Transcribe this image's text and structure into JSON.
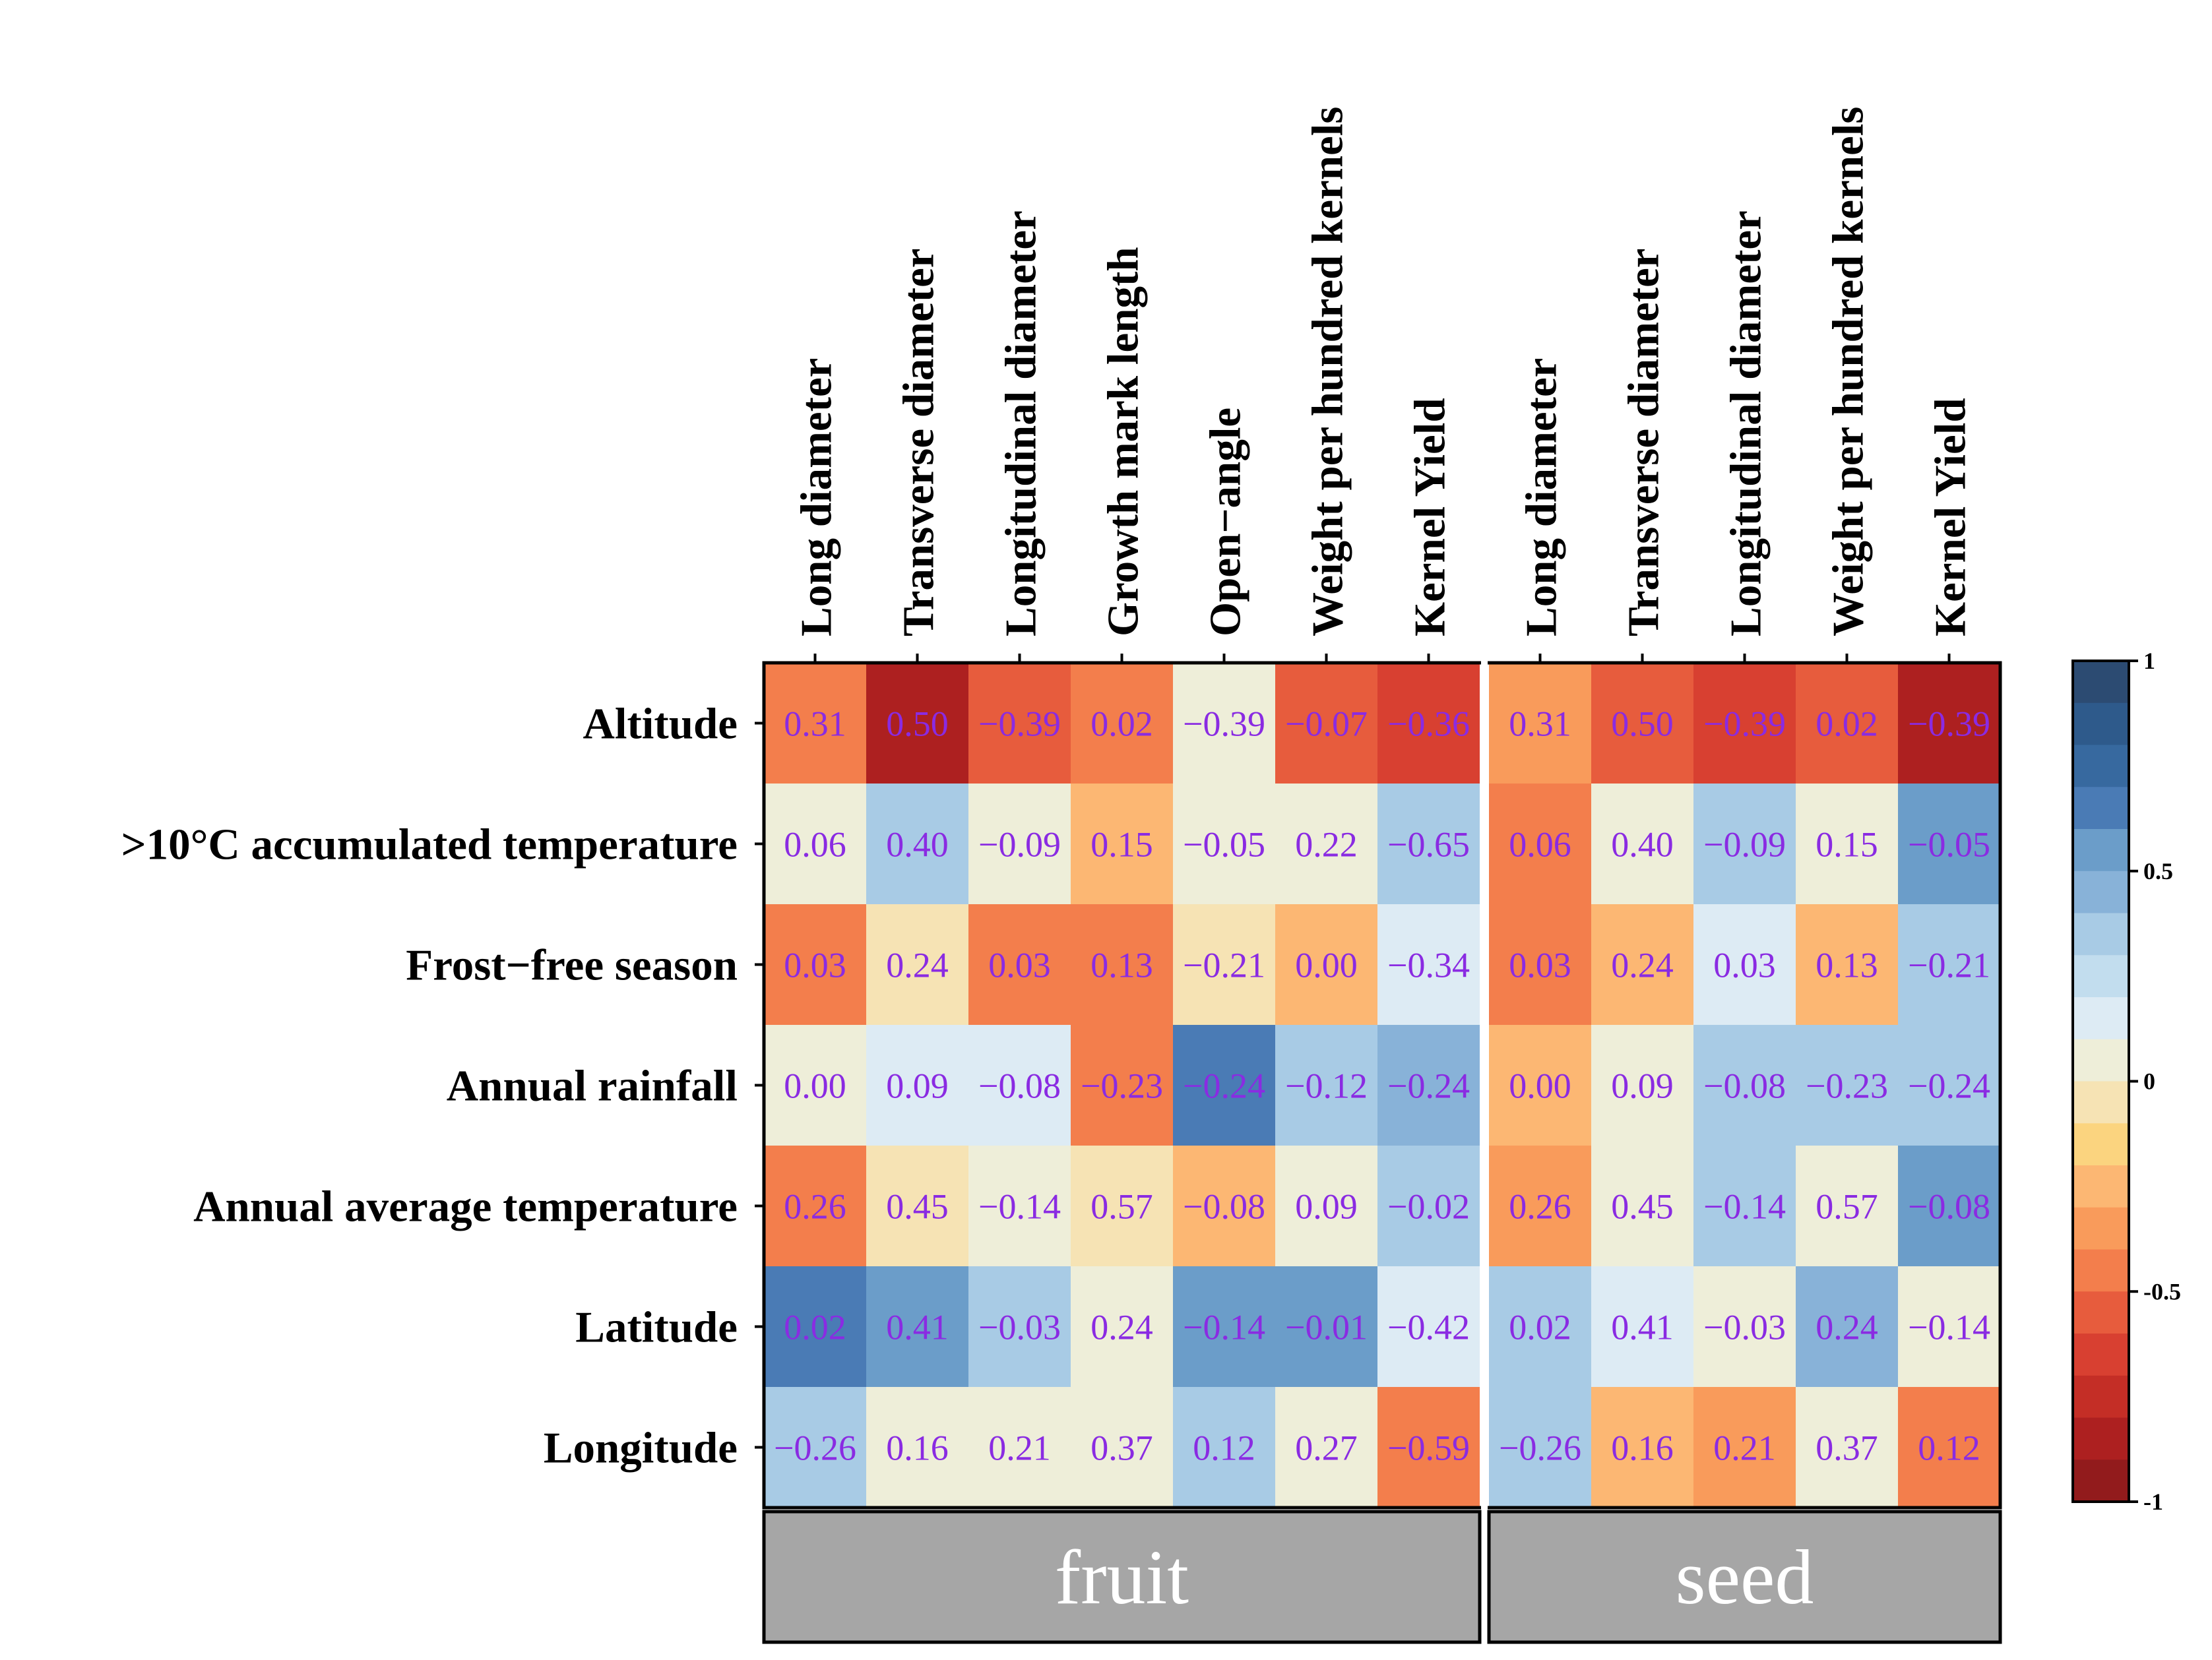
{
  "chart_data": {
    "type": "heatmap",
    "columns": [
      "Long diameter",
      "Transverse diameter",
      "Longitudinal diameter",
      "Growth mark length",
      "Open−angle",
      "Weight per hundred kernels",
      "Kernel Yield",
      "Long diameter",
      "Transverse diameter",
      "Longitudinal diameter",
      "Weight per hundred kernels",
      "Kernel Yield"
    ],
    "rows": [
      "Altitude",
      ">10°C accumulated temperature",
      "Frost−free season",
      "Annual rainfall",
      "Annual average temperature",
      "Latitude",
      "Longitude"
    ],
    "groups": [
      {
        "name": "fruit",
        "columns": 7
      },
      {
        "name": "seed",
        "columns": 5
      }
    ],
    "labels": [
      [
        "0.31",
        "0.50",
        "−0.39",
        "0.02",
        "−0.39",
        "−0.07",
        "−0.36",
        "0.31",
        "0.50",
        "−0.39",
        "0.02",
        "−0.39"
      ],
      [
        "0.06",
        "0.40",
        "−0.09",
        "0.15",
        "−0.05",
        "0.22",
        "−0.65",
        "0.06",
        "0.40",
        "−0.09",
        "0.15",
        "−0.05"
      ],
      [
        "0.03",
        "0.24",
        "0.03",
        "0.13",
        "−0.21",
        "0.00",
        "−0.34",
        "0.03",
        "0.24",
        "0.03",
        "0.13",
        "−0.21"
      ],
      [
        "0.00",
        "0.09",
        "−0.08",
        "−0.23",
        "−0.24",
        "−0.12",
        "−0.24",
        "0.00",
        "0.09",
        "−0.08",
        "−0.23",
        "−0.24"
      ],
      [
        "0.26",
        "0.45",
        "−0.14",
        "0.57",
        "−0.08",
        "0.09",
        "−0.02",
        "0.26",
        "0.45",
        "−0.14",
        "0.57",
        "−0.08"
      ],
      [
        "0.02",
        "0.41",
        "−0.03",
        "0.24",
        "−0.14",
        "−0.01",
        "−0.42",
        "0.02",
        "0.41",
        "−0.03",
        "0.24",
        "−0.14"
      ],
      [
        "−0.26",
        "0.16",
        "0.21",
        "0.37",
        "0.12",
        "0.27",
        "−0.59",
        "−0.26",
        "0.16",
        "0.21",
        "0.37",
        "0.12"
      ]
    ],
    "color_values": [
      [
        -0.45,
        -0.85,
        -0.5,
        -0.4,
        0.05,
        -0.55,
        -0.65,
        -0.35,
        -0.55,
        -0.65,
        -0.5,
        -0.85
      ],
      [
        0.05,
        0.35,
        0.08,
        -0.2,
        0.08,
        0.05,
        0.35,
        -0.4,
        0.05,
        0.35,
        0.08,
        0.6
      ],
      [
        -0.45,
        0.0,
        -0.4,
        -0.4,
        0.0,
        -0.2,
        0.2,
        -0.45,
        -0.2,
        0.2,
        -0.2,
        0.35
      ],
      [
        0.08,
        0.2,
        0.2,
        -0.4,
        0.65,
        0.35,
        0.45,
        -0.2,
        0.05,
        0.35,
        0.35,
        0.4
      ],
      [
        -0.45,
        0.0,
        0.08,
        0.0,
        -0.25,
        0.02,
        0.35,
        -0.35,
        0.08,
        0.35,
        0.08,
        0.55
      ],
      [
        0.65,
        0.6,
        0.35,
        0.08,
        0.55,
        0.6,
        0.2,
        0.4,
        0.2,
        0.05,
        0.45,
        0.02
      ],
      [
        0.4,
        0.08,
        0.08,
        0.08,
        0.35,
        0.08,
        -0.4,
        0.4,
        -0.2,
        -0.35,
        0.05,
        -0.45
      ]
    ],
    "colorbar": {
      "range": [
        -1,
        1
      ],
      "ticks": [
        "1",
        "0.5",
        "0",
        "-0.5",
        "-1"
      ],
      "colors": [
        "#2c4b72",
        "#2e5a8b",
        "#37699f",
        "#4a7bb5",
        "#6b9dc9",
        "#88b2d8",
        "#a8cbe5",
        "#c2ddee",
        "#ddebf4",
        "#eeeed9",
        "#f6e3b4",
        "#fbd47f",
        "#fcb773",
        "#f99b5b",
        "#f37e4c",
        "#e75c3d",
        "#d84031",
        "#c42e26",
        "#ad2020",
        "#921b1c"
      ]
    }
  }
}
